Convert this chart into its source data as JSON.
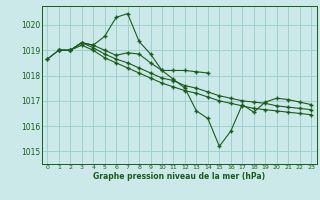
{
  "background_color": "#cce9e9",
  "grid_color": "#99cccc",
  "line_color": "#1a5c1a",
  "xlabel": "Graphe pression niveau de la mer (hPa)",
  "xlim": [
    -0.5,
    23.5
  ],
  "ylim": [
    1014.5,
    1020.75
  ],
  "yticks": [
    1015,
    1016,
    1017,
    1018,
    1019,
    1020
  ],
  "xticks": [
    0,
    1,
    2,
    3,
    4,
    5,
    6,
    7,
    8,
    9,
    10,
    11,
    12,
    13,
    14,
    15,
    16,
    17,
    18,
    19,
    20,
    21,
    22,
    23
  ],
  "series": [
    {
      "x": [
        0,
        1,
        2,
        3,
        4,
        5,
        6,
        7,
        8,
        9,
        10,
        11,
        12,
        13,
        14
      ],
      "y": [
        1018.65,
        1019.0,
        1019.0,
        1019.3,
        1019.2,
        1019.55,
        1020.3,
        1020.45,
        1019.35,
        1018.85,
        1018.2,
        1018.2,
        1018.2,
        1018.15,
        1018.1
      ]
    },
    {
      "x": [
        1,
        2,
        3,
        4,
        5,
        6,
        7,
        8,
        9,
        10,
        11,
        12,
        13,
        14,
        15,
        16,
        17,
        18,
        19,
        20,
        21,
        22,
        23
      ],
      "y": [
        1019.0,
        1019.0,
        1019.3,
        1019.1,
        1018.85,
        1018.65,
        1018.5,
        1018.3,
        1018.1,
        1017.9,
        1017.8,
        1017.6,
        1017.5,
        1017.35,
        1017.2,
        1017.1,
        1017.0,
        1016.95,
        1016.9,
        1016.8,
        1016.75,
        1016.7,
        1016.65
      ]
    },
    {
      "x": [
        1,
        2,
        3,
        4,
        5,
        6,
        7,
        8,
        9,
        10,
        11,
        12,
        13,
        14,
        15,
        16,
        17,
        18,
        19,
        20,
        21,
        22,
        23
      ],
      "y": [
        1019.0,
        1019.0,
        1019.2,
        1019.0,
        1018.7,
        1018.5,
        1018.3,
        1018.1,
        1017.9,
        1017.7,
        1017.55,
        1017.4,
        1017.3,
        1017.15,
        1017.0,
        1016.9,
        1016.8,
        1016.7,
        1016.65,
        1016.6,
        1016.55,
        1016.5,
        1016.45
      ]
    },
    {
      "x": [
        0,
        1,
        2,
        3,
        4,
        5,
        6,
        7,
        8,
        9,
        10,
        11,
        12,
        13,
        14,
        15,
        16,
        17,
        18,
        19,
        20,
        21,
        22,
        23
      ],
      "y": [
        1018.65,
        1019.0,
        1019.0,
        1019.3,
        1019.2,
        1019.0,
        1018.8,
        1018.9,
        1018.85,
        1018.5,
        1018.2,
        1017.85,
        1017.5,
        1016.6,
        1016.3,
        1015.2,
        1015.8,
        1016.85,
        1016.55,
        1016.95,
        1017.1,
        1017.05,
        1016.95,
        1016.85
      ]
    }
  ]
}
